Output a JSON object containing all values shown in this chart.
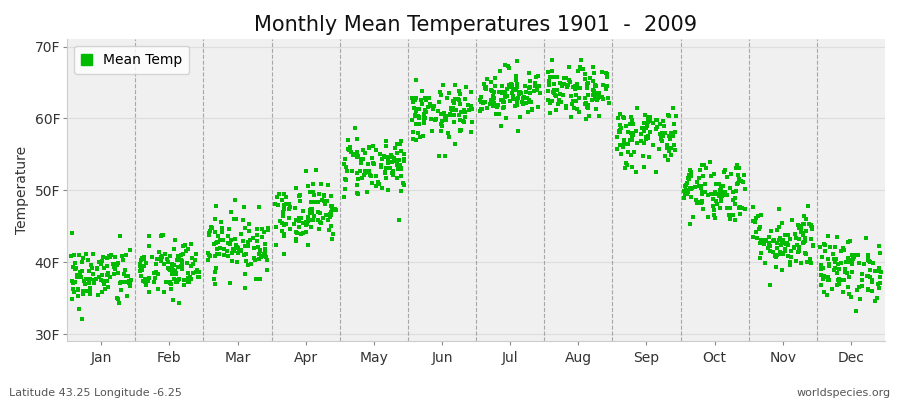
{
  "title": "Monthly Mean Temperatures 1901  -  2009",
  "ylabel": "Temperature",
  "xlabel_months": [
    "Jan",
    "Feb",
    "Mar",
    "Apr",
    "May",
    "Jun",
    "Jul",
    "Aug",
    "Sep",
    "Oct",
    "Nov",
    "Dec"
  ],
  "yticks": [
    30,
    40,
    50,
    60,
    70
  ],
  "ytick_labels": [
    "30F",
    "40F",
    "50F",
    "60F",
    "70F"
  ],
  "ylim": [
    29,
    71
  ],
  "dot_color": "#00bb00",
  "dot_size": 10,
  "dot_marker": "s",
  "background_color": "#ffffff",
  "panel_bg_light": "#f0f0f0",
  "panel_bg_dark": "#e8e8e8",
  "title_fontsize": 15,
  "axis_fontsize": 10,
  "tick_fontsize": 10,
  "legend_label": "Mean Temp",
  "subtitle_left": "Latitude 43.25 Longitude -6.25",
  "subtitle_right": "worldspecies.org",
  "monthly_means": [
    38.0,
    39.0,
    42.5,
    47.0,
    53.5,
    60.5,
    63.5,
    63.5,
    57.5,
    50.0,
    43.0,
    39.0
  ],
  "monthly_stds": [
    2.2,
    2.2,
    2.2,
    2.2,
    2.2,
    2.0,
    1.8,
    1.8,
    2.2,
    2.2,
    2.2,
    2.2
  ],
  "n_years": 109,
  "seed": 42,
  "dashed_line_color": "#888888",
  "grid_line_color": "#dddddd"
}
